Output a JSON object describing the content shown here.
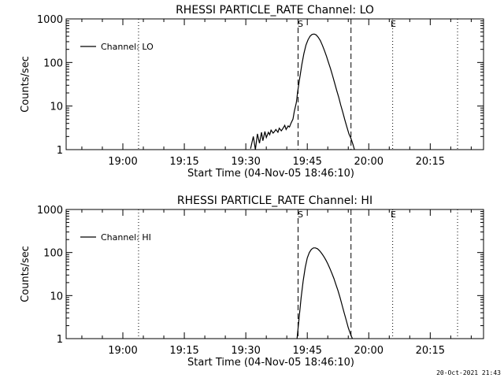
{
  "timestamp": "20-Oct-2021 21:43",
  "chart_data": [
    {
      "type": "line",
      "title": "RHESSI PARTICLE_RATE Channel: LO",
      "xlabel": "Start Time (04-Nov-05 18:46:10)",
      "ylabel": "Counts/sec",
      "y_scale": "log",
      "ylim": [
        1,
        1000
      ],
      "xlim": [
        "18:46:10",
        "20:28:00"
      ],
      "x_ticks": [
        "19:00",
        "19:15",
        "19:30",
        "19:45",
        "20:00",
        "20:15"
      ],
      "y_ticks": [
        "1",
        "10",
        "100",
        "1000"
      ],
      "legend": {
        "position": "top-left",
        "entries": [
          "Channel: LO"
        ]
      },
      "markers": {
        "dotted_lines": [
          "19:03:50",
          "20:05:50",
          "20:21:40"
        ],
        "dashed_lines": [
          "19:42:45",
          "19:55:40"
        ],
        "labels": [
          {
            "text": "S",
            "x": "19:43:20"
          },
          {
            "text": "E",
            "x": "20:06:00"
          }
        ]
      },
      "series": [
        {
          "name": "Channel: LO",
          "x": [
            "19:31:10",
            "19:31:50",
            "19:32:20",
            "19:32:50",
            "19:33:20",
            "19:33:50",
            "19:34:10",
            "19:34:40",
            "19:35:00",
            "19:35:30",
            "19:35:50",
            "19:36:10",
            "19:36:40",
            "19:37:00",
            "19:37:20",
            "19:37:50",
            "19:38:10",
            "19:38:40",
            "19:39:00",
            "19:39:30",
            "19:39:50",
            "19:40:20",
            "19:40:40",
            "19:41:00",
            "19:41:30",
            "19:41:50",
            "19:42:20",
            "19:42:40",
            "19:43:10",
            "19:43:40",
            "19:44:10",
            "19:44:40",
            "19:45:10",
            "19:45:40",
            "19:46:10",
            "19:46:40",
            "19:47:10",
            "19:47:40",
            "19:48:10",
            "19:48:40",
            "19:49:10",
            "19:49:40",
            "19:50:10",
            "19:50:40",
            "19:51:10",
            "19:51:40",
            "19:52:10",
            "19:52:40",
            "19:53:10",
            "19:53:40",
            "19:54:10",
            "19:54:40",
            "19:55:10",
            "19:55:40",
            "19:56:10",
            "19:56:30"
          ],
          "y": [
            1.05,
            2.0,
            1.0,
            2.3,
            1.4,
            2.5,
            1.6,
            2.6,
            1.9,
            2.5,
            2.2,
            2.8,
            2.4,
            2.6,
            2.9,
            2.5,
            3.1,
            2.7,
            3.0,
            3.6,
            2.9,
            3.5,
            3.3,
            4.0,
            5.0,
            7.5,
            12,
            22,
            45,
            90,
            160,
            250,
            330,
            400,
            440,
            450,
            430,
            380,
            320,
            250,
            190,
            140,
            100,
            72,
            50,
            34,
            23,
            16,
            10.5,
            7.2,
            4.8,
            3.3,
            2.3,
            1.8,
            1.3,
            1.0
          ]
        }
      ]
    },
    {
      "type": "line",
      "title": "RHESSI PARTICLE_RATE Channel: HI",
      "xlabel": "Start Time (04-Nov-05 18:46:10)",
      "ylabel": "Counts/sec",
      "y_scale": "log",
      "ylim": [
        1,
        1000
      ],
      "xlim": [
        "18:46:10",
        "20:28:00"
      ],
      "x_ticks": [
        "19:00",
        "19:15",
        "19:30",
        "19:45",
        "20:00",
        "20:15"
      ],
      "y_ticks": [
        "1",
        "10",
        "100",
        "1000"
      ],
      "legend": {
        "position": "top-left",
        "entries": [
          "Channel: HI"
        ]
      },
      "markers": {
        "dotted_lines": [
          "19:03:50",
          "20:05:50",
          "20:21:40"
        ],
        "dashed_lines": [
          "19:42:45",
          "19:55:40"
        ],
        "labels": [
          {
            "text": "S",
            "x": "19:43:20"
          },
          {
            "text": "E",
            "x": "20:06:00"
          }
        ]
      },
      "series": [
        {
          "name": "Channel: HI",
          "x": [
            "19:42:30",
            "19:43:00",
            "19:43:30",
            "19:44:00",
            "19:44:30",
            "19:45:00",
            "19:45:30",
            "19:46:00",
            "19:46:30",
            "19:47:00",
            "19:47:30",
            "19:48:00",
            "19:48:30",
            "19:49:00",
            "19:49:30",
            "19:50:00",
            "19:50:30",
            "19:51:00",
            "19:51:30",
            "19:52:00",
            "19:52:30",
            "19:53:00",
            "19:53:30",
            "19:54:00",
            "19:54:30",
            "19:55:00",
            "19:55:30",
            "19:56:00"
          ],
          "y": [
            1.0,
            3.0,
            9.0,
            22,
            45,
            75,
            100,
            118,
            128,
            128,
            122,
            110,
            96,
            82,
            68,
            55,
            43,
            33,
            25,
            18,
            13,
            9.0,
            6.0,
            4.0,
            2.7,
            1.8,
            1.3,
            1.0
          ]
        }
      ]
    }
  ]
}
